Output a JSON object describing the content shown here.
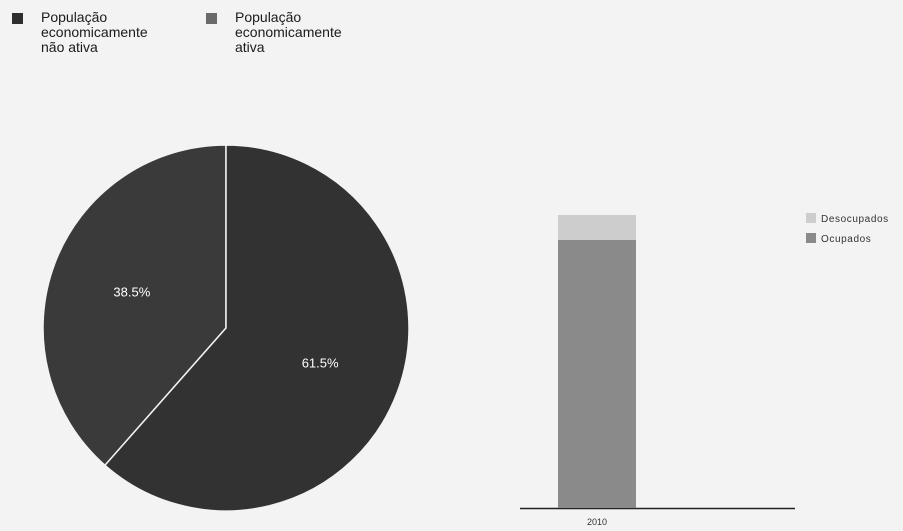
{
  "chart_data": [
    {
      "type": "pie",
      "legend": [
        {
          "label_lines": [
            "População",
            "economicamente",
            "não ativa"
          ],
          "color": "#2e2e2e"
        },
        {
          "label_lines": [
            "População",
            "economicamente",
            "ativa"
          ],
          "color": "#6a6a6a"
        }
      ],
      "slices": [
        {
          "label": "38.5%",
          "value": 38.5,
          "color": "#3a3a3a"
        },
        {
          "label": "61.5%",
          "value": 61.5,
          "color": "#323232"
        }
      ],
      "legend_position": "top-left",
      "title": ""
    },
    {
      "type": "bar",
      "stacked": true,
      "categories": [
        "2010"
      ],
      "series": [
        {
          "name": "Ocupados",
          "values": [
            91.5
          ],
          "color": "#8a8a8a"
        },
        {
          "name": "Desocupados",
          "values": [
            8.5
          ],
          "color": "#cdcdcd"
        }
      ],
      "legend_order": [
        "Desocupados",
        "Ocupados"
      ],
      "legend_position": "right",
      "ylim": [
        0,
        100
      ],
      "grid": false,
      "title": "",
      "xlabel": "",
      "ylabel": ""
    }
  ]
}
